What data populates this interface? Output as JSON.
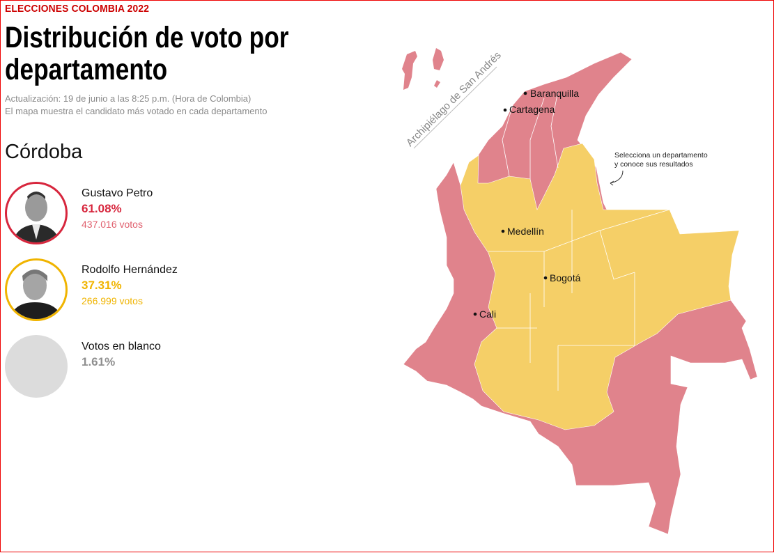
{
  "header": {
    "kicker": "ELECCIONES COLOMBIA 2022",
    "title_line1": "Distribución de voto por",
    "title_line2": "departamento",
    "update": "Actualización: 19 de junio a las 8:25 p.m. (Hora de Colombia)",
    "description": "El mapa muestra el candidato más votado en cada departamento"
  },
  "selected_department": "Córdoba",
  "candidates": [
    {
      "name": "Gustavo Petro",
      "percent": "61.08%",
      "votes": "437.016 votos",
      "color": "#d7263d"
    },
    {
      "name": "Rodolfo Hernández",
      "percent": "37.31%",
      "votes": "266.999 votos",
      "color": "#f0b400"
    }
  ],
  "blank": {
    "name": "Votos en blanco",
    "percent": "1.61%",
    "color": "#8f8f8f"
  },
  "map": {
    "colors": {
      "petro": "#e0838c",
      "hernandez": "#f5cf67"
    },
    "archipelago_label": "Archipiélago de San Andrés",
    "cities": [
      "Baranquilla",
      "Cartagena",
      "Medellín",
      "Bogotá",
      "Cali"
    ],
    "hint_line1": "Selecciona un departamento",
    "hint_line2": "y conoce sus resultados"
  }
}
